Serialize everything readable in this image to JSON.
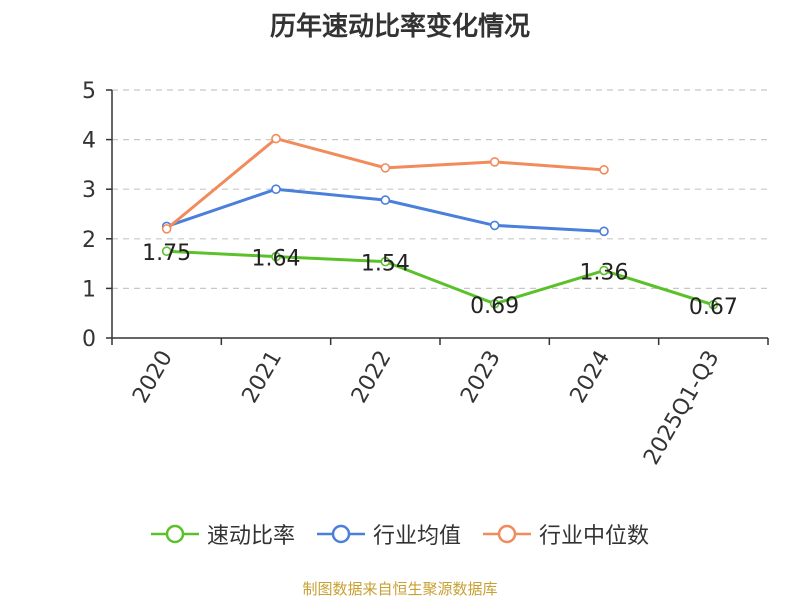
{
  "chart_data": {
    "type": "line",
    "title": "历年速动比率变化情况",
    "categories": [
      "2020",
      "2021",
      "2022",
      "2023",
      "2024",
      "2025Q1-Q3"
    ],
    "ylim": [
      0,
      5
    ],
    "yticks": [
      0,
      1,
      2,
      3,
      4,
      5
    ],
    "grid": true,
    "legend_position": "bottom",
    "series": [
      {
        "name": "速动比率",
        "color": "#5bc12a",
        "values": [
          1.75,
          1.64,
          1.54,
          0.69,
          1.36,
          0.67
        ],
        "labels": [
          "1.75",
          "1.64",
          "1.54",
          "0.69",
          "1.36",
          "0.67"
        ]
      },
      {
        "name": "行业均值",
        "color": "#4a7fdb",
        "values": [
          2.25,
          3.0,
          2.78,
          2.27,
          2.15,
          null
        ]
      },
      {
        "name": "行业中位数",
        "color": "#f28b5b",
        "values": [
          2.2,
          4.02,
          3.43,
          3.55,
          3.39,
          null
        ]
      }
    ]
  },
  "source_text": "制图数据来自恒生聚源数据库",
  "source_color": "#c8a032"
}
